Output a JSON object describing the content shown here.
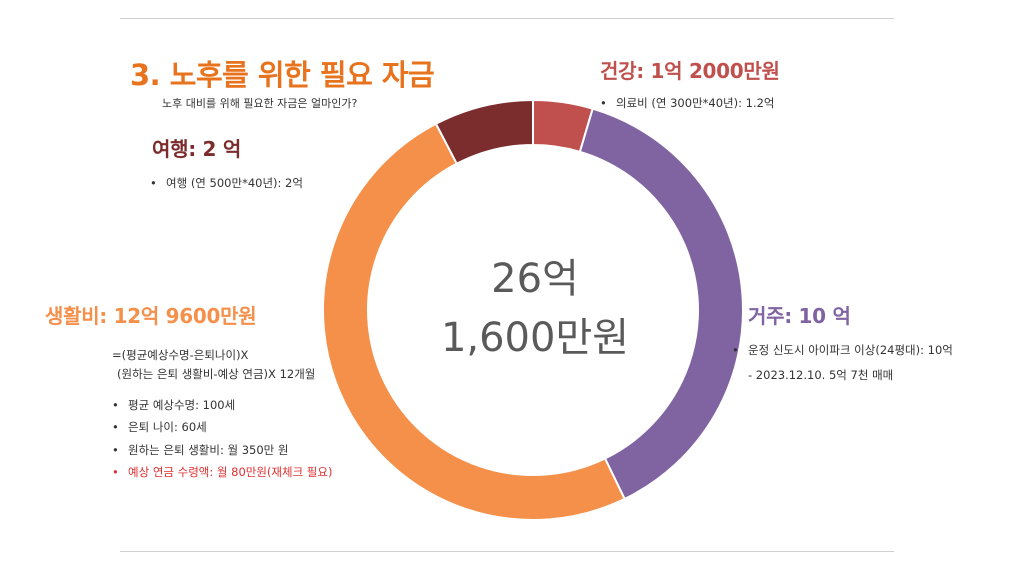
{
  "page": {
    "title": "3. 노후를 위한 필요 자금",
    "subtitle": "노후 대비를 위해 필요한 자금은 얼마인가?"
  },
  "center": {
    "line1": "26억",
    "line2": "1,600만원"
  },
  "sections": {
    "health": {
      "heading": "건강: 1억 2000만원",
      "color": "#c0504d",
      "bullets": [
        "의료비 (연 300만*40년): 1.2억"
      ]
    },
    "travel": {
      "heading": "여행: 2 억",
      "color": "#7b2c2c",
      "bullets": [
        "여행 (연 500만*40년): 2억"
      ]
    },
    "living": {
      "heading": "생활비: 12억 9600만원",
      "color": "#f4904a",
      "formula1": "=(평균예상수명-은퇴나이)X",
      "formula2": "(원하는 은퇴 생활비-예상 연금)X 12개월",
      "bullets": [
        "평균 예상수명: 100세",
        "은퇴 나이: 60세",
        "원하는 은퇴 생활비: 월 350만 원"
      ],
      "highlight_bullet": "예상 연금 수령액: 월 80만원(재체크 필요)"
    },
    "housing": {
      "heading": "거주: 10 억",
      "color": "#8064a2",
      "bullets": [
        "운정 신도시 아이파크 이상(24평대): 10억"
      ],
      "note": "- 2023.12.10. 5억 7천 매매"
    }
  },
  "chart_data": {
    "type": "pie",
    "style": "donut",
    "categories": [
      "건강",
      "거주",
      "생활비",
      "여행"
    ],
    "values": [
      1.2,
      10,
      12.96,
      2
    ],
    "colors": [
      "#c0504d",
      "#8064a2",
      "#f4904a",
      "#7b2c2c"
    ],
    "total_label": "26억 1,600만원"
  }
}
